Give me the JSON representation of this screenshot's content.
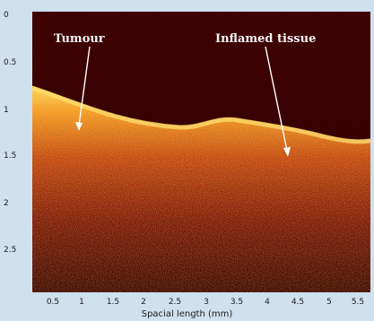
{
  "image": {
    "annotations": [
      {
        "id": "tumour",
        "text": "Tumour"
      },
      {
        "id": "inflamed",
        "text": "Inflamed tissue"
      }
    ],
    "x_axis": {
      "label": "Spacial length (mm)",
      "ticks": [
        "0.5",
        "1",
        "1.5",
        "2",
        "2.5",
        "3",
        "3.5",
        "4",
        "4.5",
        "5",
        "5.5"
      ],
      "range": [
        0.1,
        5.7
      ]
    },
    "y_axis": {
      "ticks": [
        "0",
        "0.5",
        "1",
        "1.5",
        "2",
        "2.5"
      ],
      "range": [
        0,
        2.9
      ]
    },
    "colors": {
      "background": "#cfe0ef",
      "plot_dark": "#2a0000",
      "tissue_bright": "#ffcc44",
      "tissue_mid": "#c84a10",
      "tissue_deep": "#5a0a00"
    }
  }
}
